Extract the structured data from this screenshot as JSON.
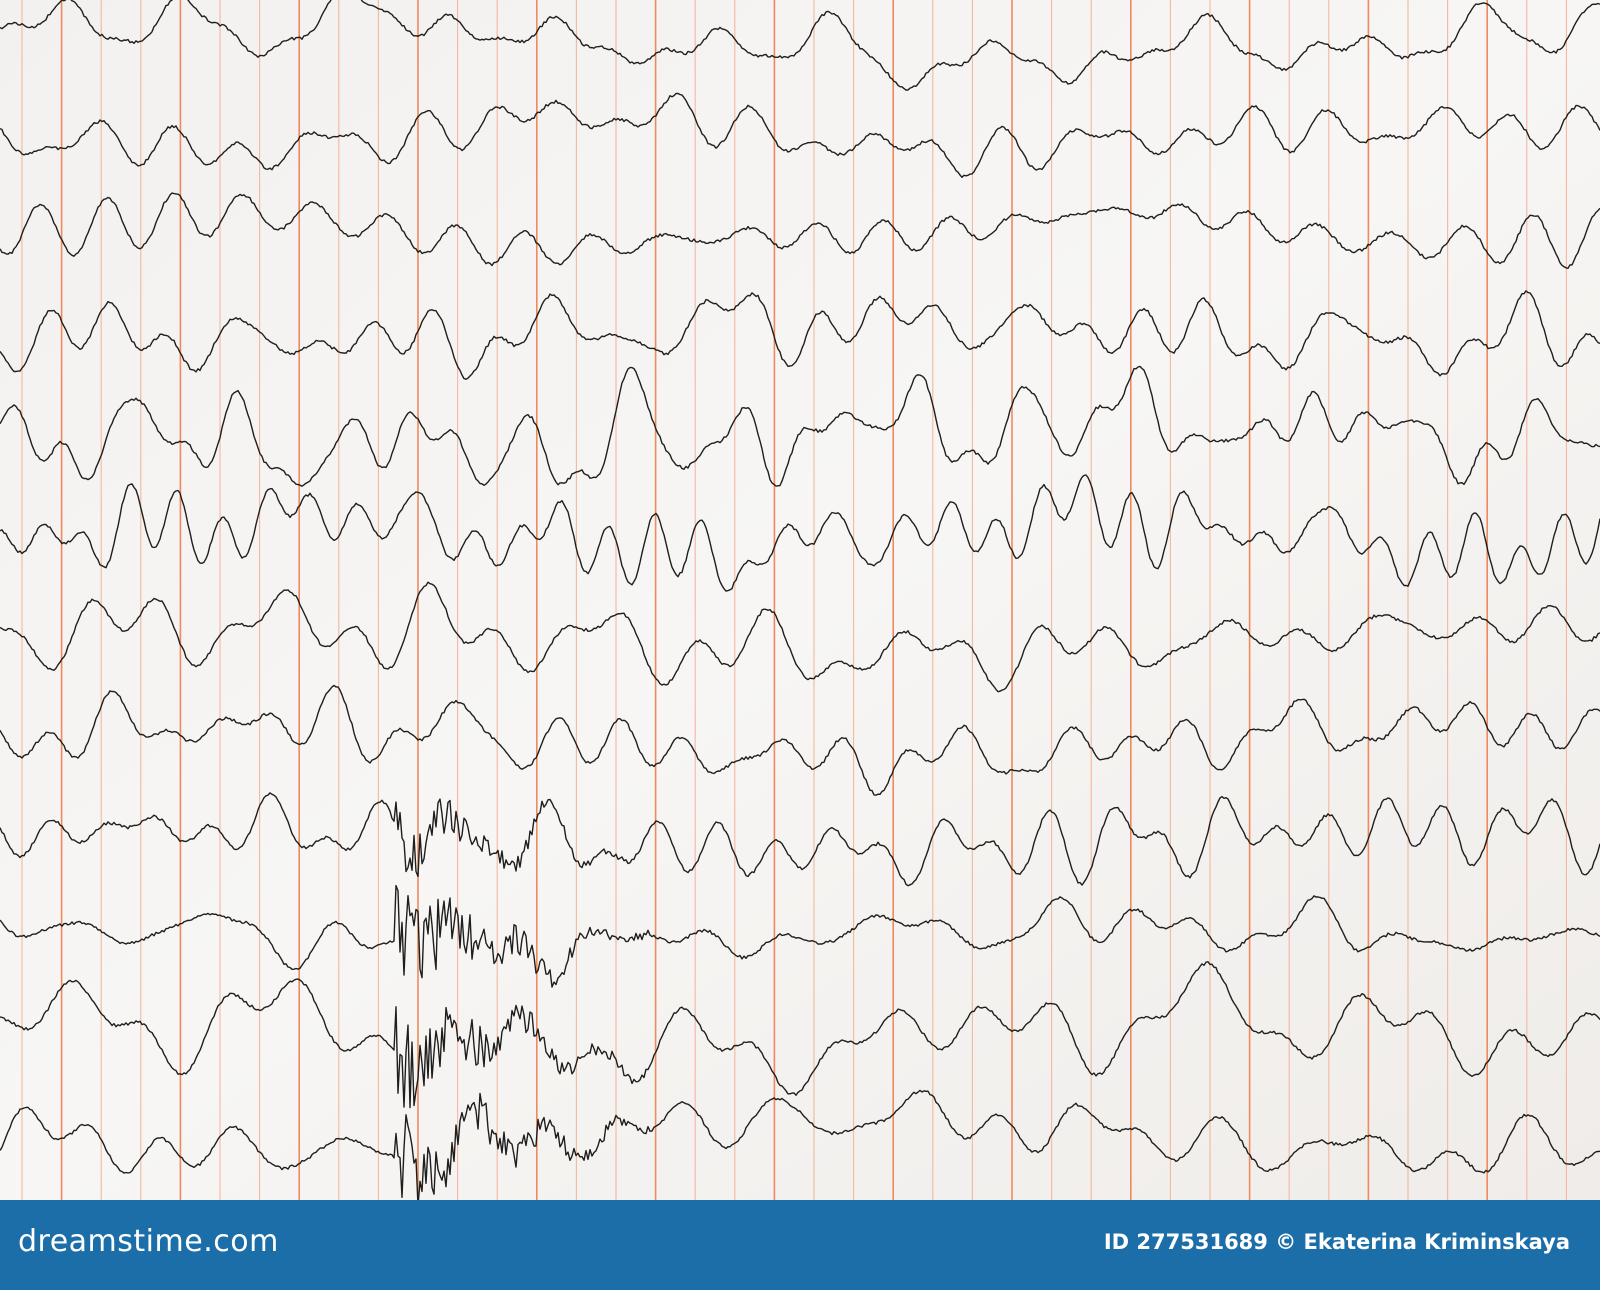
{
  "footer": {
    "logo": "dreamstime.com",
    "credit": "ID 277531689 © Ekaterina Kriminskaya"
  }
}
